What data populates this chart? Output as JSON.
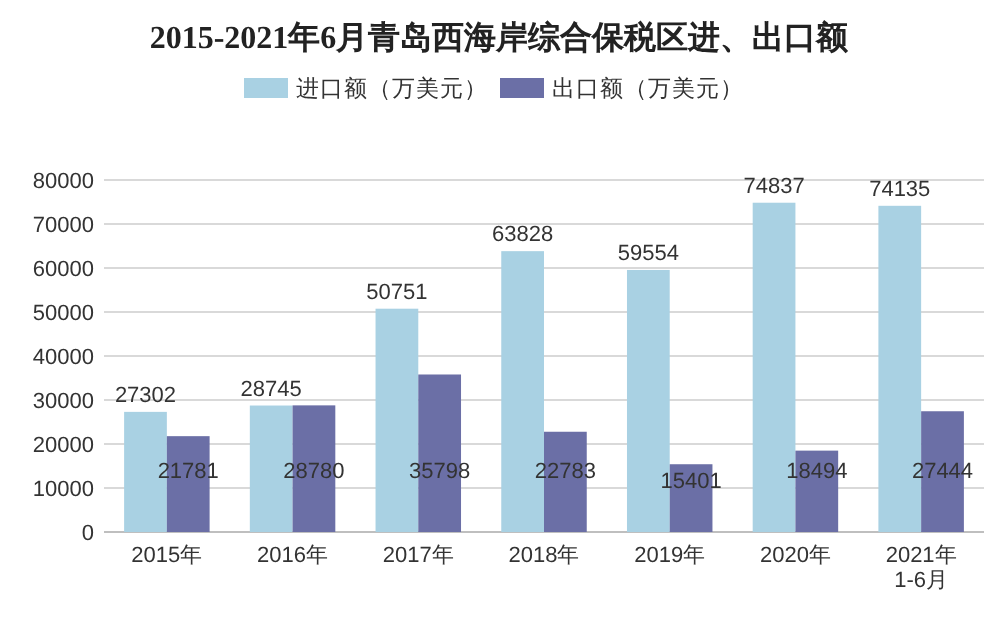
{
  "chart_data": {
    "type": "bar",
    "title": "2015-2021年6月青岛西海岸综合保税区进、出口额",
    "categories": [
      "2015年",
      "2016年",
      "2017年",
      "2018年",
      "2019年",
      "2020年",
      "2021年\n1-6月"
    ],
    "series": [
      {
        "name": "进口额（万美元）",
        "color": "#a9d1e3",
        "values": [
          27302,
          28745,
          50751,
          63828,
          59554,
          74837,
          74135
        ]
      },
      {
        "name": "出口额（万美元）",
        "color": "#6b6fa6",
        "values": [
          21781,
          28780,
          35798,
          22783,
          15401,
          18494,
          27444
        ]
      }
    ],
    "ylim": [
      0,
      80000
    ],
    "yticks": [
      0,
      10000,
      20000,
      30000,
      40000,
      50000,
      60000,
      70000,
      80000
    ],
    "grid": "y",
    "legend": "top",
    "data_labels": true
  }
}
